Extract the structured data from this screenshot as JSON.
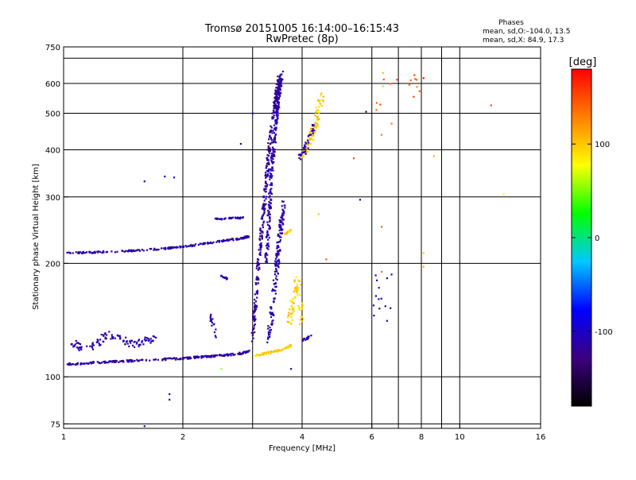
{
  "header": {
    "title": "Tromsø 20151005 16:14:00–16:15:43",
    "subtitle": "RwPretec (8p)"
  },
  "stats": {
    "heading": "Phases",
    "line1": "mean, sd,O:–104.0, 13.5",
    "line2": "mean, sd,X:  84.9, 17.3"
  },
  "chart_data": {
    "type": "scatter",
    "xscale": "log",
    "yscale": "log",
    "xlim": [
      1,
      16
    ],
    "ylim": [
      73,
      750
    ],
    "xlabel": "Frequency [MHz]",
    "ylabel": "Stationary phase Virtual Height [km]",
    "xticks": [
      1,
      2,
      4,
      6,
      8,
      10,
      16
    ],
    "yticks": [
      75,
      100,
      200,
      300,
      400,
      500,
      600,
      750
    ],
    "xgrid": [
      1,
      2,
      3,
      4,
      6,
      7,
      8,
      9,
      10
    ],
    "ygrid": [
      75,
      100,
      200,
      300,
      400,
      500,
      600,
      700
    ],
    "grid": true,
    "colorbar": {
      "label": "[deg]",
      "min": -180,
      "max": 180,
      "ticks": [
        100,
        0,
        -100
      ],
      "colors": [
        "#000000",
        "#3c0080",
        "#0000ff",
        "#00c8ff",
        "#00ff00",
        "#ffff00",
        "#ff8000",
        "#ff0000"
      ]
    },
    "traces": [
      {
        "x": [
          1.02,
          1.2,
          1.4,
          1.7,
          2.0,
          2.25,
          2.5,
          2.75,
          2.95
        ],
        "y": [
          108,
          109,
          110,
          111,
          112,
          113,
          114,
          115,
          117
        ],
        "phase": -115,
        "spread": 0.012,
        "count": 260
      },
      {
        "x": [
          1.02,
          1.15,
          1.3,
          1.5,
          1.7
        ],
        "y": [
          125,
          118,
          130,
          122,
          126
        ],
        "phase": -110,
        "spread": 0.045,
        "count": 110
      },
      {
        "x": [
          1.02,
          1.2,
          1.5,
          1.8,
          2.1,
          2.5,
          2.8,
          2.95
        ],
        "y": [
          213,
          214,
          216,
          219,
          223,
          229,
          233,
          236
        ],
        "phase": -112,
        "spread": 0.01,
        "count": 220
      },
      {
        "x": [
          2.4,
          2.6,
          2.85
        ],
        "y": [
          262,
          263,
          264
        ],
        "phase": -110,
        "spread": 0.01,
        "count": 40
      },
      {
        "x": [
          3.0,
          3.1,
          3.2,
          3.3,
          3.4,
          3.5
        ],
        "y": [
          125,
          200,
          280,
          400,
          520,
          620
        ],
        "phase": -118,
        "spread": 0.03,
        "count": 320
      },
      {
        "x": [
          3.25,
          3.35,
          3.45,
          3.55
        ],
        "y": [
          200,
          350,
          500,
          640
        ],
        "phase": -112,
        "spread": 0.03,
        "count": 260
      },
      {
        "x": [
          3.3,
          3.4,
          3.5,
          3.6
        ],
        "y": [
          125,
          170,
          230,
          290
        ],
        "phase": -110,
        "spread": 0.04,
        "count": 160
      },
      {
        "x": [
          3.05,
          3.3,
          3.55,
          3.75
        ],
        "y": [
          114,
          116,
          118,
          121
        ],
        "phase": 95,
        "spread": 0.012,
        "count": 90
      },
      {
        "x": [
          3.7,
          3.8,
          3.9,
          4.0
        ],
        "y": [
          140,
          160,
          180,
          140
        ],
        "phase": 98,
        "spread": 0.05,
        "count": 70
      },
      {
        "x": [
          3.6,
          3.75
        ],
        "y": [
          238,
          245
        ],
        "phase": 100,
        "spread": 0.01,
        "count": 18
      },
      {
        "x": [
          4.0,
          4.2,
          4.35,
          4.5
        ],
        "y": [
          390,
          430,
          480,
          560
        ],
        "phase": 100,
        "spread": 0.05,
        "count": 90
      },
      {
        "x": [
          3.95,
          4.15,
          4.3
        ],
        "y": [
          380,
          420,
          470
        ],
        "phase": -108,
        "spread": 0.04,
        "count": 35
      },
      {
        "x": [
          4.0,
          4.2
        ],
        "y": [
          125,
          128
        ],
        "phase": -110,
        "spread": 0.02,
        "count": 14
      },
      {
        "x": [
          2.35,
          2.45
        ],
        "y": [
          145,
          125
        ],
        "phase": -108,
        "spread": 0.04,
        "count": 16
      },
      {
        "x": [
          2.5,
          2.6
        ],
        "y": [
          185,
          182
        ],
        "phase": -110,
        "spread": 0.01,
        "count": 12
      },
      {
        "x": [
          6.4,
          6.45
        ],
        "y": [
          140,
          200
        ],
        "phase": -105,
        "spread": 0.2,
        "count": 14
      },
      {
        "x": [
          6.4,
          6.45,
          8.1
        ],
        "y": [
          400,
          550,
          600
        ],
        "phase": 140,
        "spread": 0.2,
        "count": 16
      }
    ],
    "points": [
      {
        "x": 1.6,
        "y": 330,
        "phase": -110
      },
      {
        "x": 1.8,
        "y": 340,
        "phase": -108
      },
      {
        "x": 1.9,
        "y": 338,
        "phase": -112
      },
      {
        "x": 2.8,
        "y": 415,
        "phase": -110
      },
      {
        "x": 3.0,
        "y": 500,
        "phase": -110
      },
      {
        "x": 1.85,
        "y": 87,
        "phase": -110
      },
      {
        "x": 1.85,
        "y": 90,
        "phase": -110
      },
      {
        "x": 1.6,
        "y": 74,
        "phase": -110
      },
      {
        "x": 5.6,
        "y": 295,
        "phase": -110
      },
      {
        "x": 5.8,
        "y": 505,
        "phase": -140
      },
      {
        "x": 5.4,
        "y": 380,
        "phase": 150
      },
      {
        "x": 6.35,
        "y": 250,
        "phase": 140
      },
      {
        "x": 6.35,
        "y": 190,
        "phase": 135
      },
      {
        "x": 8.1,
        "y": 620,
        "phase": 175
      },
      {
        "x": 8.1,
        "y": 213,
        "phase": 100
      },
      {
        "x": 8.1,
        "y": 196,
        "phase": 110
      },
      {
        "x": 8.6,
        "y": 385,
        "phase": 110
      },
      {
        "x": 12.0,
        "y": 525,
        "phase": 150
      },
      {
        "x": 12.9,
        "y": 305,
        "phase": 80
      },
      {
        "x": 4.4,
        "y": 270,
        "phase": 100
      },
      {
        "x": 4.6,
        "y": 205,
        "phase": 145
      },
      {
        "x": 2.5,
        "y": 105,
        "phase": 60
      },
      {
        "x": 3.75,
        "y": 105,
        "phase": -112
      },
      {
        "x": 6.4,
        "y": 640,
        "phase": 100
      },
      {
        "x": 6.4,
        "y": 590,
        "phase": 60
      }
    ]
  }
}
